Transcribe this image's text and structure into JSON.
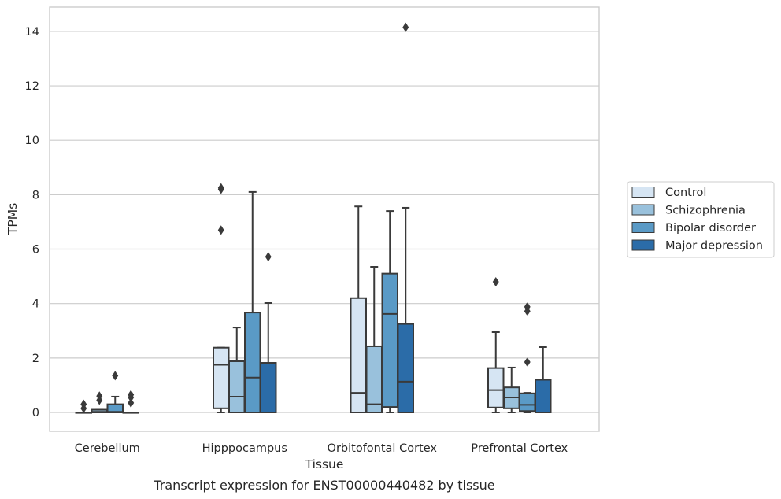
{
  "chart_data": {
    "type": "box",
    "caption": "Transcript expression for ENST00000440482 by tissue",
    "xlabel": "Tissue",
    "ylabel": "TPMs",
    "ylim": [
      -0.7,
      14.85
    ],
    "yticks": [
      0,
      2,
      4,
      6,
      8,
      10,
      12,
      14
    ],
    "grid": "horizontal",
    "legend_position": "right",
    "categories": [
      "Cerebellum",
      "Hipppocampus",
      "Orbitofontal Cortex",
      "Prefrontal Cortex"
    ],
    "series": [
      {
        "name": "Control",
        "color": "#d6e5f3",
        "boxes": [
          {
            "whisker_low": 0,
            "q1": 0,
            "median": 0,
            "q3": 0,
            "whisker_high": 0,
            "fliers": [
              0.15,
              0.3
            ]
          },
          {
            "whisker_low": 0,
            "q1": 0.15,
            "median": 1.75,
            "q3": 2.38,
            "whisker_high": 2.38,
            "fliers": [
              6.7,
              8.2,
              8.25
            ]
          },
          {
            "whisker_low": 0,
            "q1": 0,
            "median": 0.72,
            "q3": 4.2,
            "whisker_high": 7.57,
            "fliers": []
          },
          {
            "whisker_low": 0,
            "q1": 0.18,
            "median": 0.82,
            "q3": 1.63,
            "whisker_high": 2.95,
            "fliers": [
              4.8
            ]
          }
        ]
      },
      {
        "name": "Schizophrenia",
        "color": "#99c1dc",
        "boxes": [
          {
            "whisker_low": 0,
            "q1": 0,
            "median": 0.02,
            "q3": 0.1,
            "whisker_high": 0.1,
            "fliers": [
              0.45,
              0.6
            ]
          },
          {
            "whisker_low": 0,
            "q1": 0,
            "median": 0.58,
            "q3": 1.88,
            "whisker_high": 3.12,
            "fliers": []
          },
          {
            "whisker_low": 0,
            "q1": 0,
            "median": 0.3,
            "q3": 2.43,
            "whisker_high": 5.35,
            "fliers": []
          },
          {
            "whisker_low": 0,
            "q1": 0.15,
            "median": 0.55,
            "q3": 0.92,
            "whisker_high": 1.65,
            "fliers": []
          }
        ]
      },
      {
        "name": "Bipolar disorder",
        "color": "#5a9ac6",
        "boxes": [
          {
            "whisker_low": 0,
            "q1": 0,
            "median": 0.02,
            "q3": 0.3,
            "whisker_high": 0.58,
            "fliers": [
              1.35
            ]
          },
          {
            "whisker_low": 0,
            "q1": 0,
            "median": 1.28,
            "q3": 3.67,
            "whisker_high": 8.1,
            "fliers": []
          },
          {
            "whisker_low": 0,
            "q1": 0.2,
            "median": 3.62,
            "q3": 5.1,
            "whisker_high": 7.4,
            "fliers": []
          },
          {
            "whisker_low": 0,
            "q1": 0.05,
            "median": 0.28,
            "q3": 0.7,
            "whisker_high": 0.72,
            "fliers": [
              1.85,
              3.72,
              3.88
            ]
          }
        ]
      },
      {
        "name": "Major depression",
        "color": "#2b6ca8",
        "boxes": [
          {
            "whisker_low": 0,
            "q1": 0,
            "median": 0,
            "q3": 0,
            "whisker_high": 0,
            "fliers": [
              0.35,
              0.55,
              0.65
            ]
          },
          {
            "whisker_low": 0,
            "q1": 0,
            "median": 1.82,
            "q3": 1.82,
            "whisker_high": 4.02,
            "fliers": [
              5.72
            ]
          },
          {
            "whisker_low": 0,
            "q1": 0,
            "median": 1.13,
            "q3": 3.25,
            "whisker_high": 7.52,
            "fliers": [
              14.15
            ]
          },
          {
            "whisker_low": 0,
            "q1": 0,
            "median": 1.2,
            "q3": 1.2,
            "whisker_high": 2.4,
            "fliers": []
          }
        ]
      }
    ]
  }
}
